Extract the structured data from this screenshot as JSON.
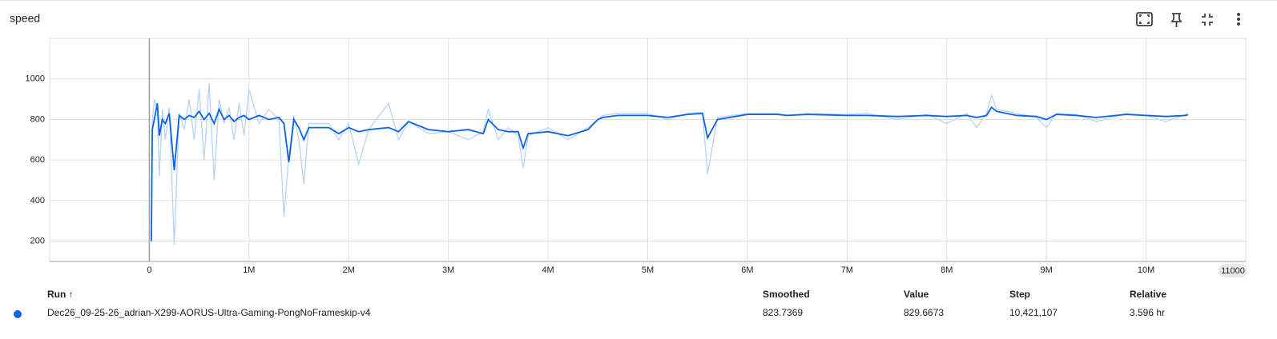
{
  "chart_data": {
    "type": "line",
    "title": "speed",
    "x": [
      20000,
      30000,
      50000,
      80000,
      100000,
      130000,
      160000,
      200000,
      250000,
      300000,
      350000,
      400000,
      450000,
      500000,
      550000,
      600000,
      650000,
      700000,
      750000,
      800000,
      850000,
      900000,
      950000,
      1000000,
      1100000,
      1200000,
      1300000,
      1350000,
      1400000,
      1450000,
      1500000,
      1550000,
      1600000,
      1700000,
      1800000,
      1900000,
      2000000,
      2100000,
      2200000,
      2400000,
      2500000,
      2600000,
      2800000,
      3000000,
      3200000,
      3350000,
      3400000,
      3500000,
      3600000,
      3700000,
      3750000,
      3800000,
      4000000,
      4200000,
      4400000,
      4500000,
      4550000,
      4700000,
      5000000,
      5200000,
      5400000,
      5550000,
      5600000,
      5700000,
      6000000,
      6300000,
      6400000,
      6600000,
      7000000,
      7200000,
      7500000,
      7800000,
      8000000,
      8200000,
      8300000,
      8400000,
      8450000,
      8500000,
      8700000,
      8900000,
      9000000,
      9100000,
      9300000,
      9500000,
      9800000,
      10000000,
      10200000,
      10400000,
      10420000
    ],
    "series": [
      {
        "color": "#b6d3f8",
        "values": [
          200,
          780,
          900,
          850,
          520,
          850,
          700,
          860,
          180,
          830,
          750,
          900,
          700,
          950,
          600,
          980,
          500,
          900,
          780,
          860,
          700,
          880,
          720,
          950,
          780,
          850,
          800,
          320,
          620,
          820,
          700,
          480,
          780,
          780,
          780,
          700,
          780,
          580,
          750,
          880,
          700,
          790,
          730,
          740,
          700,
          740,
          850,
          700,
          760,
          720,
          560,
          720,
          760,
          700,
          760,
          800,
          820,
          830,
          830,
          800,
          830,
          835,
          530,
          810,
          830,
          830,
          820,
          830,
          825,
          830,
          800,
          825,
          780,
          830,
          760,
          830,
          920,
          850,
          830,
          810,
          760,
          830,
          825,
          790,
          830,
          820,
          790,
          825,
          829.6673
        ]
      },
      {
        "name": "Dec26_09-25-26_adrian-X299-AORUS-Ultra-Gaming-PongNoFrameskip-v4",
        "color": "#0b62e6",
        "values": [
          200,
          750,
          800,
          880,
          720,
          800,
          780,
          830,
          550,
          820,
          800,
          820,
          810,
          840,
          800,
          830,
          780,
          850,
          800,
          820,
          790,
          810,
          820,
          800,
          820,
          800,
          810,
          780,
          590,
          800,
          760,
          700,
          760,
          760,
          760,
          730,
          760,
          740,
          750,
          760,
          740,
          790,
          750,
          740,
          750,
          730,
          800,
          750,
          740,
          740,
          660,
          730,
          740,
          720,
          750,
          800,
          810,
          820,
          820,
          810,
          825,
          830,
          710,
          800,
          825,
          825,
          820,
          825,
          820,
          820,
          815,
          820,
          815,
          820,
          810,
          820,
          860,
          840,
          820,
          815,
          800,
          825,
          820,
          810,
          825,
          820,
          815,
          820,
          823.7369
        ]
      }
    ],
    "xlim": [
      -1000000,
      11000000
    ],
    "xticks": [
      0,
      {
        "value": 1000000,
        "label": "1M"
      },
      {
        "value": 2000000,
        "label": "2M"
      },
      {
        "value": 3000000,
        "label": "3M"
      },
      {
        "value": 4000000,
        "label": "4M"
      },
      {
        "value": 5000000,
        "label": "5M"
      },
      {
        "value": 6000000,
        "label": "6M"
      },
      {
        "value": 7000000,
        "label": "7M"
      },
      {
        "value": 8000000,
        "label": "8M"
      },
      {
        "value": 9000000,
        "label": "9M"
      },
      {
        "value": 10000000,
        "label": "10M"
      }
    ],
    "ylim": [
      100,
      1200
    ],
    "yticks": [
      200,
      400,
      600,
      800,
      1000
    ],
    "grid": true,
    "axis_end_label": "11000",
    "table": {
      "headers": [
        "Run ↑",
        "Smoothed",
        "Value",
        "Step",
        "Relative"
      ],
      "row": [
        "823.7369",
        "829.6673",
        "10,421,107",
        "3.596 hr"
      ]
    }
  }
}
